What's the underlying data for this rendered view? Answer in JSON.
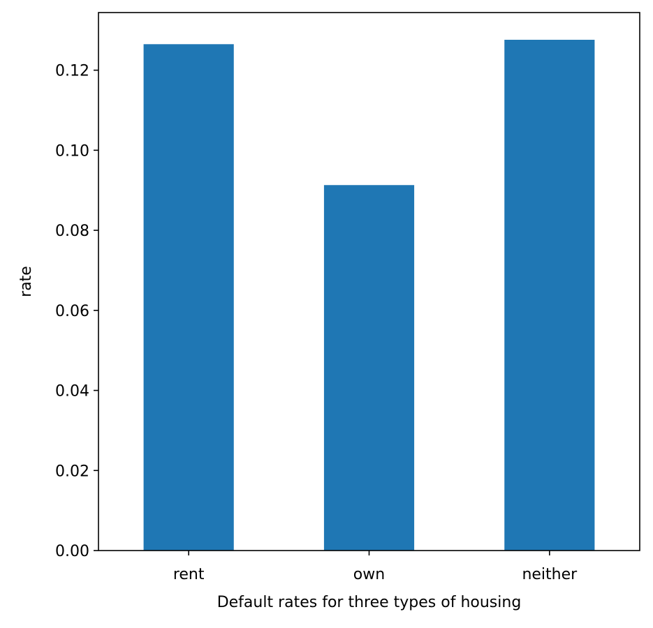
{
  "chart_data": {
    "type": "bar",
    "categories": [
      "rent",
      "own",
      "neither"
    ],
    "values": [
      0.1265,
      0.0913,
      0.1276
    ],
    "title": "",
    "xlabel": "Default rates for three types of housing",
    "ylabel": "rate",
    "ylim": [
      0,
      0.1344
    ],
    "yticks": [
      "0.00",
      "0.02",
      "0.04",
      "0.06",
      "0.08",
      "0.10",
      "0.12"
    ],
    "grid": false,
    "bar_color": "#1f77b4"
  }
}
